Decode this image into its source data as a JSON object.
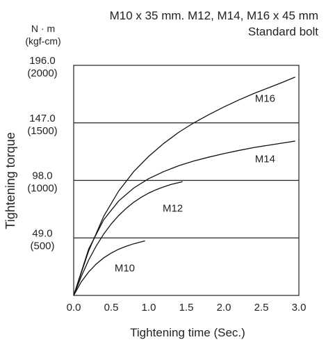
{
  "chart_data": {
    "type": "line",
    "title_line1": "M10 x 35 mm. M12, M14, M16 x 45 mm",
    "title_line2": "Standard bolt",
    "xlabel": "Tightening time (Sec.)",
    "ylabel": "Tightening torque",
    "yunit_line1": "N · m",
    "yunit_line2": "(kgf-cm)",
    "xlim": [
      0,
      3.0
    ],
    "ylim": [
      0,
      196.0
    ],
    "grid": {
      "horizontal": true,
      "vertical": false
    },
    "x_ticks": [
      {
        "value": 0.0,
        "label": "0.0"
      },
      {
        "value": 0.5,
        "label": "0.5"
      },
      {
        "value": 1.0,
        "label": "1.0"
      },
      {
        "value": 1.5,
        "label": "1.5"
      },
      {
        "value": 2.0,
        "label": "2.0"
      },
      {
        "value": 2.5,
        "label": "2.5"
      },
      {
        "value": 3.0,
        "label": "3.0"
      }
    ],
    "y_ticks": [
      {
        "value": 49.0,
        "label": "49.0",
        "sublabel": "(500)"
      },
      {
        "value": 98.0,
        "label": "98.0",
        "sublabel": "(1000)"
      },
      {
        "value": 147.0,
        "label": "147.0",
        "sublabel": "(1500)"
      },
      {
        "value": 196.0,
        "label": "196.0",
        "sublabel": "(2000)"
      }
    ],
    "series": [
      {
        "name": "M10",
        "x": [
          0.0,
          0.1,
          0.2,
          0.3,
          0.4,
          0.5,
          0.6,
          0.7,
          0.8,
          0.95
        ],
        "y": [
          0.0,
          11.5,
          20.0,
          26.7,
          32.0,
          36.1,
          39.4,
          41.9,
          44.0,
          46.5
        ]
      },
      {
        "name": "M12",
        "x": [
          0.0,
          0.1,
          0.2,
          0.3,
          0.4,
          0.5,
          0.6,
          0.7,
          0.8,
          0.9,
          1.0,
          1.1,
          1.2,
          1.3,
          1.45
        ],
        "y": [
          0.0,
          16.0,
          30.2,
          42.1,
          52.3,
          60.9,
          68.1,
          74.2,
          79.4,
          83.6,
          87.2,
          90.1,
          92.5,
          94.6,
          96.9
        ]
      },
      {
        "name": "M14",
        "x": [
          0.0,
          0.2,
          0.4,
          0.6,
          0.8,
          1.0,
          1.2,
          1.4,
          1.6,
          1.8,
          2.0,
          2.2,
          2.4,
          2.6,
          2.8,
          2.95
        ],
        "y": [
          0.0,
          39.5,
          64.5,
          80.5,
          91.5,
          99.5,
          105.5,
          110.5,
          114.5,
          117.8,
          120.8,
          123.5,
          126.0,
          128.0,
          130.0,
          131.5
        ]
      },
      {
        "name": "M16",
        "x": [
          0.0,
          0.2,
          0.4,
          0.6,
          0.8,
          1.0,
          1.2,
          1.4,
          1.6,
          1.8,
          2.0,
          2.2,
          2.4,
          2.6,
          2.8,
          2.95
        ],
        "y": [
          0.0,
          38.0,
          67.5,
          89.0,
          105.5,
          118.5,
          129.5,
          139.0,
          147.0,
          154.0,
          160.5,
          166.5,
          172.0,
          177.0,
          182.0,
          186.0
        ]
      }
    ],
    "labels": [
      {
        "series": "M10",
        "text": "M10",
        "x": 0.68,
        "y": 20.5
      },
      {
        "series": "M12",
        "text": "M12",
        "x": 1.32,
        "y": 71.5
      },
      {
        "series": "M14",
        "text": "M14",
        "x": 2.55,
        "y": 113.5
      },
      {
        "series": "M16",
        "text": "M16",
        "x": 2.55,
        "y": 165.0
      }
    ]
  }
}
